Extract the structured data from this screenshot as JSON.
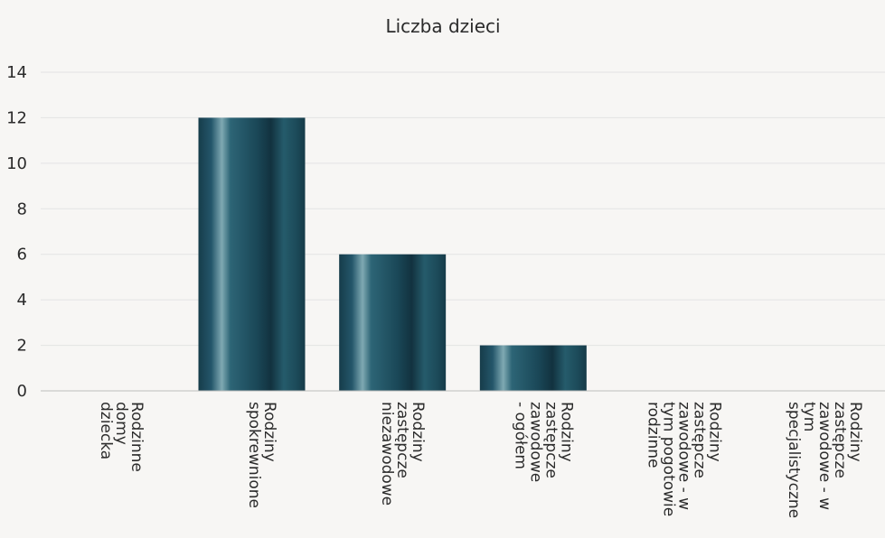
{
  "chart_data": {
    "type": "bar",
    "title": "Liczba dzieci",
    "xlabel": "",
    "ylabel": "",
    "ylim": [
      0,
      14
    ],
    "yticks": [
      "0",
      "2",
      "4",
      "6",
      "8",
      "10",
      "12",
      "14"
    ],
    "grid": true,
    "categories": [
      [
        "Rodzinne",
        "domy",
        "dziecka"
      ],
      [
        "Rodziny",
        "spokrewnione"
      ],
      [
        "Rodziny",
        "zastępcze",
        "niezawodowe"
      ],
      [
        "Rodziny",
        "zastępcze",
        "zawodowe",
        "- ogółem"
      ],
      [
        "Rodziny",
        "zastępcze",
        "zawodowe - w",
        "tym pogotowie",
        "rodzinne"
      ],
      [
        "Rodziny",
        "zastępcze",
        "zawodowe - w",
        "tym",
        "specjalistyczne"
      ]
    ],
    "values": [
      0,
      12,
      6,
      2,
      0,
      0
    ],
    "bar_color": "#1d4a5a"
  }
}
